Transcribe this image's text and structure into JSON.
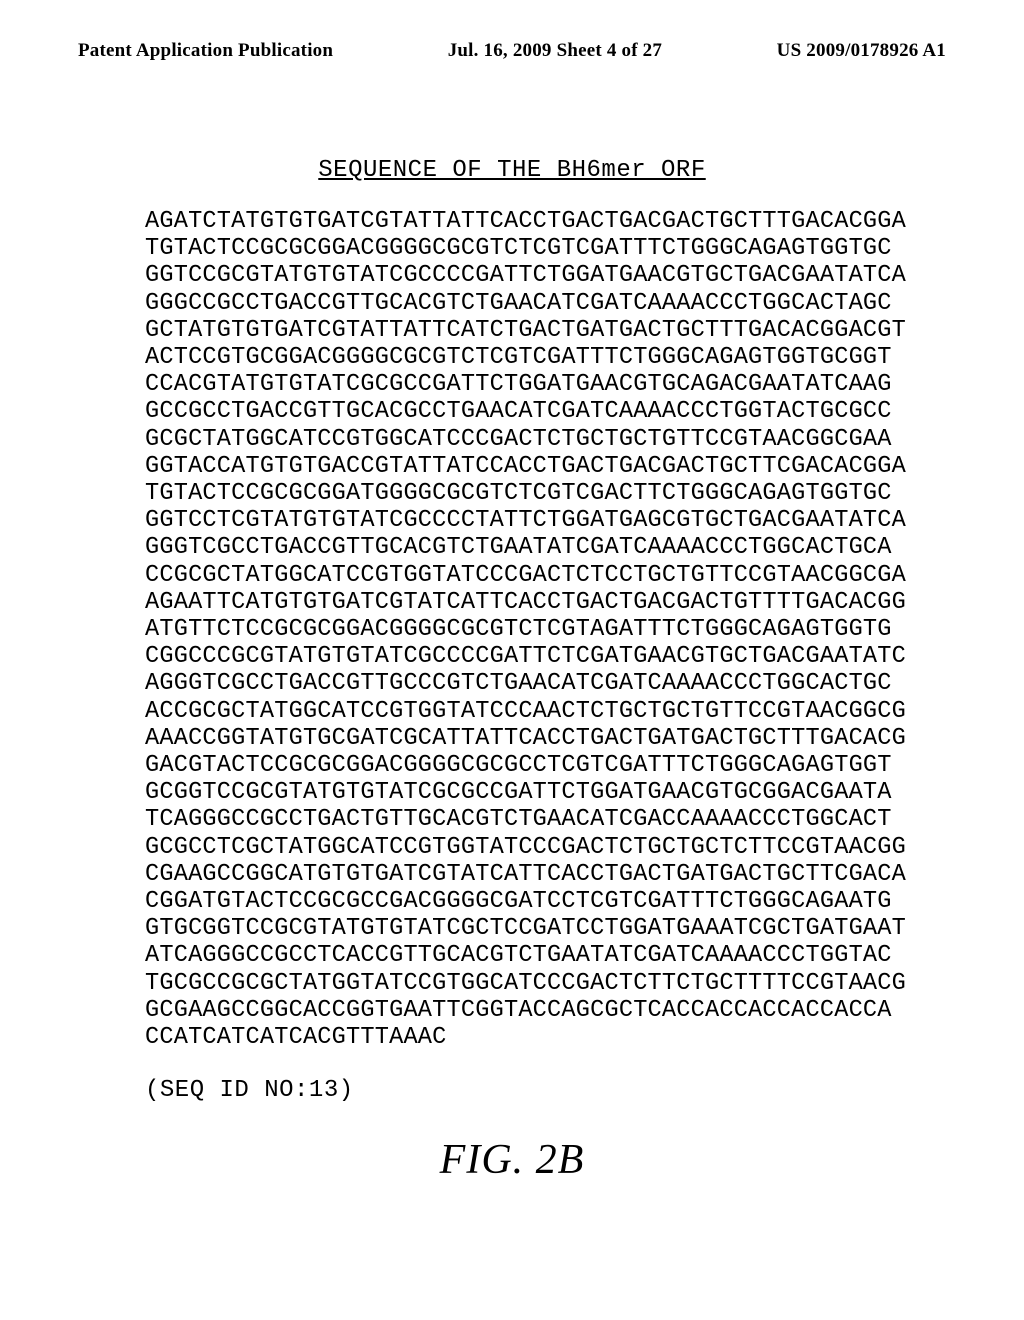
{
  "header": {
    "left": "Patent Application Publication",
    "center": "Jul. 16, 2009  Sheet 4 of 27",
    "right": "US 2009/0178926 A1"
  },
  "title": "SEQUENCE OF THE BH6mer ORF",
  "sequence_lines": [
    "AGATCTATGTGTGATCGTATTATTCACCTGACTGACGACTGCTTTGACACGGA",
    "TGTACTCCGCGCGGACGGGGCGCGTCTCGTCGATTTCTGGGCAGAGTGGTGC",
    "GGTCCGCGTATGTGTATCGCCCCGATTCTGGATGAACGTGCTGACGAATATCA",
    "GGGCCGCCTGACCGTTGCACGTCTGAACATCGATCAAAACCCTGGCACTAGC",
    "GCTATGTGTGATCGTATTATTCATCTGACTGATGACTGCTTTGACACGGACGT",
    "ACTCCGTGCGGACGGGGCGCGTCTCGTCGATTTCTGGGCAGAGTGGTGCGGT",
    "CCACGTATGTGTATCGCGCCGATTCTGGATGAACGTGCAGACGAATATCAAG",
    "GCCGCCTGACCGTTGCACGCCTGAACATCGATCAAAACCCTGGTACTGCGCC",
    "GCGCTATGGCATCCGTGGCATCCCGACTCTGCTGCTGTTCCGTAACGGCGAA",
    "GGTACCATGTGTGACCGTATTATCCACCTGACTGACGACTGCTTCGACACGGA",
    "TGTACTCCGCGCGGATGGGGCGCGTCTCGTCGACTTCTGGGCAGAGTGGTGC",
    "GGTCCTCGTATGTGTATCGCCCCTATTCTGGATGAGCGTGCTGACGAATATCA",
    "GGGTCGCCTGACCGTTGCACGTCTGAATATCGATCAAAACCCTGGCACTGCA",
    "CCGCGCTATGGCATCCGTGGTATCCCGACTCTCCTGCTGTTCCGTAACGGCGA",
    "AGAATTCATGTGTGATCGTATCATTCACCTGACTGACGACTGTTTTGACACGG",
    "ATGTTCTCCGCGCGGACGGGGCGCGTCTCGTAGATTTCTGGGCAGAGTGGTG",
    "CGGCCCGCGTATGTGTATCGCCCCGATTCTCGATGAACGTGCTGACGAATATC",
    "AGGGTCGCCTGACCGTTGCCCGTCTGAACATCGATCAAAACCCTGGCACTGC",
    "ACCGCGCTATGGCATCCGTGGTATCCCAACTCTGCTGCTGTTCCGTAACGGCG",
    "AAACCGGTATGTGCGATCGCATTATTCACCTGACTGATGACTGCTTTGACACG",
    "GACGTACTCCGCGCGGACGGGGCGCGCCTCGTCGATTTCTGGGCAGAGTGGT",
    "GCGGTCCGCGTATGTGTATCGCGCCGATTCTGGATGAACGTGCGGACGAATA",
    "TCAGGGCCGCCTGACTGTTGCACGTCTGAACATCGACCAAAACCCTGGCACT",
    "GCGCCTCGCTATGGCATCCGTGGTATCCCGACTCTGCTGCTCTTCCGTAACGG",
    "CGAAGCCGGCATGTGTGATCGTATCATTCACCTGACTGATGACTGCTTCGACA",
    "CGGATGTACTCCGCGCCGACGGGGCGATCCTCGTCGATTTCTGGGCAGAATG",
    "GTGCGGTCCGCGTATGTGTATCGCTCCGATCCTGGATGAAATCGCTGATGAAT",
    "ATCAGGGCCGCCTCACCGTTGCACGTCTGAATATCGATCAAAACCCTGGTAC",
    "TGCGCCGCGCTATGGTATCCGTGGCATCCCGACTCTTCTGCTTTTCCGTAACG",
    "GCGAAGCCGGCACCGGTGAATTCGGTACCAGCGCTCACCACCACCACCACCA",
    "CCATCATCATCACGTTTAAAC"
  ],
  "seq_id": "(SEQ ID NO:13)",
  "figure_label": "FIG. 2B"
}
